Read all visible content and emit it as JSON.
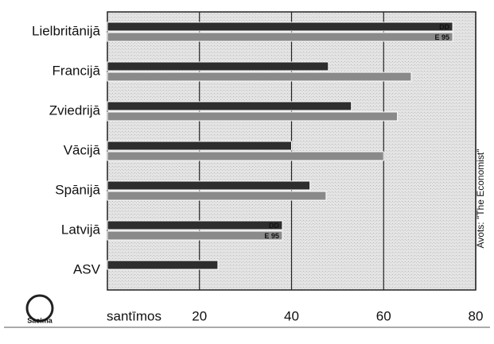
{
  "chart_data": {
    "type": "hbar",
    "categories": [
      "Lielbritānijā",
      "Francijā",
      "Zviedrijā",
      "Vācijā",
      "Spānijā",
      "Latvijā",
      "ASV"
    ],
    "series": [
      {
        "name": "DD",
        "color": "#2e2e2e",
        "values": [
          75,
          48,
          53,
          40,
          44,
          38,
          24
        ]
      },
      {
        "name": "E 95",
        "color": "#8a8a8a",
        "values": [
          75,
          66,
          63,
          60,
          47.5,
          38,
          null
        ]
      }
    ],
    "xlabel": "santīmos",
    "xlim": [
      0,
      80
    ],
    "xticks": [
      20,
      40,
      60,
      80
    ],
    "grid": true,
    "source": "Avots: \"The Economist\"",
    "logo": "Saeima"
  }
}
